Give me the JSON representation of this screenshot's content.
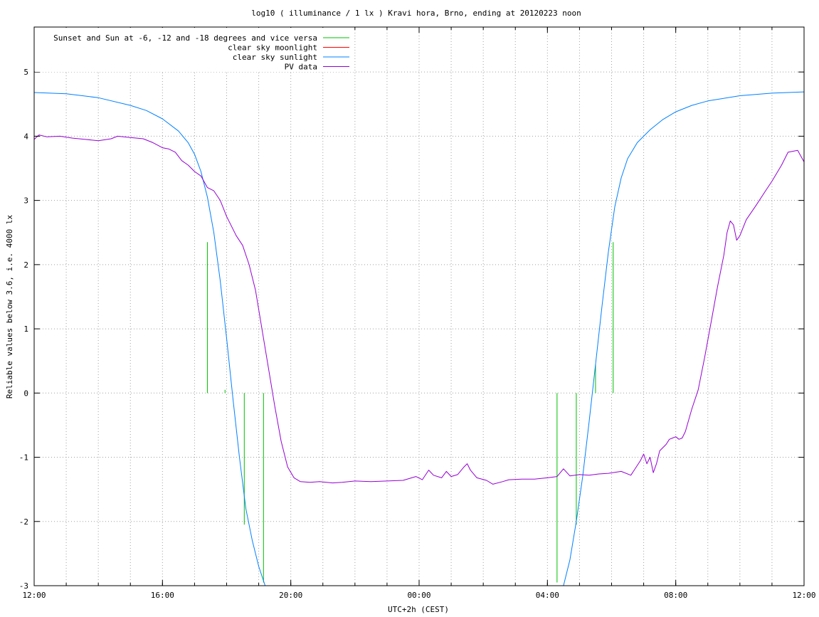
{
  "chart_data": {
    "type": "line",
    "title": "log10 ( illuminance / 1 lx ) Kravi hora, Brno, ending at 20120223 noon",
    "xlabel": "UTC+2h (CEST)",
    "ylabel": "Reliable values below 3.6, i.e. 4000 lx",
    "xlim": [
      0,
      24
    ],
    "ylim": [
      -3,
      5.7
    ],
    "x_tick_positions_hours": [
      0,
      4,
      8,
      12,
      16,
      20,
      24
    ],
    "x_tick_labels": [
      "12:00",
      "16:00",
      "20:00",
      "00:00",
      "04:00",
      "08:00",
      "12:00"
    ],
    "x_minor_grid_hours": [
      0,
      1,
      2,
      3,
      4,
      5,
      6,
      7,
      8,
      9,
      10,
      11,
      12,
      13,
      14,
      15,
      16,
      17,
      18,
      19,
      20,
      21,
      22,
      23,
      24
    ],
    "y_ticks": [
      -3,
      -2,
      -1,
      0,
      1,
      2,
      3,
      4,
      5
    ],
    "grid": true,
    "legend_position": "top-left",
    "series": [
      {
        "name": "Sunset and Sun at -6, -12 and -18 degrees and vice versa",
        "color": "#00c000",
        "kind": "impulses",
        "points": [
          [
            5.4,
            2.35
          ],
          [
            5.95,
            0.05
          ],
          [
            6.55,
            -2.05
          ],
          [
            7.15,
            -2.95
          ],
          [
            16.3,
            -2.95
          ],
          [
            16.9,
            -2.05
          ],
          [
            17.5,
            0.45
          ],
          [
            18.05,
            2.35
          ]
        ]
      },
      {
        "name": "clear sky moonlight",
        "color": "#ff0000",
        "kind": "line",
        "points": []
      },
      {
        "name": "clear sky sunlight",
        "color": "#0080ff",
        "kind": "line",
        "points": [
          [
            0,
            4.68
          ],
          [
            1,
            4.66
          ],
          [
            2,
            4.6
          ],
          [
            3,
            4.48
          ],
          [
            3.5,
            4.4
          ],
          [
            4,
            4.27
          ],
          [
            4.5,
            4.08
          ],
          [
            4.8,
            3.9
          ],
          [
            5.0,
            3.72
          ],
          [
            5.2,
            3.45
          ],
          [
            5.4,
            3.05
          ],
          [
            5.6,
            2.5
          ],
          [
            5.8,
            1.75
          ],
          [
            6.0,
            0.85
          ],
          [
            6.2,
            -0.1
          ],
          [
            6.4,
            -1.0
          ],
          [
            6.6,
            -1.8
          ],
          [
            6.8,
            -2.3
          ],
          [
            7.0,
            -2.7
          ],
          [
            7.2,
            -3.0
          ],
          [
            16.5,
            -3.0
          ],
          [
            16.7,
            -2.6
          ],
          [
            16.9,
            -2.0
          ],
          [
            17.1,
            -1.3
          ],
          [
            17.3,
            -0.45
          ],
          [
            17.5,
            0.45
          ],
          [
            17.7,
            1.35
          ],
          [
            17.9,
            2.2
          ],
          [
            18.1,
            2.9
          ],
          [
            18.3,
            3.35
          ],
          [
            18.5,
            3.65
          ],
          [
            18.8,
            3.9
          ],
          [
            19.2,
            4.1
          ],
          [
            19.6,
            4.26
          ],
          [
            20.0,
            4.38
          ],
          [
            20.5,
            4.48
          ],
          [
            21.0,
            4.55
          ],
          [
            22.0,
            4.63
          ],
          [
            23.0,
            4.67
          ],
          [
            24,
            4.69
          ]
        ]
      },
      {
        "name": "PV data",
        "color": "#9500d3",
        "kind": "line",
        "points": [
          [
            0,
            3.95
          ],
          [
            0.15,
            4.02
          ],
          [
            0.4,
            3.99
          ],
          [
            0.8,
            4.0
          ],
          [
            1.2,
            3.97
          ],
          [
            1.6,
            3.95
          ],
          [
            2.0,
            3.93
          ],
          [
            2.4,
            3.96
          ],
          [
            2.6,
            4.0
          ],
          [
            3.0,
            3.98
          ],
          [
            3.4,
            3.96
          ],
          [
            3.7,
            3.9
          ],
          [
            4.0,
            3.82
          ],
          [
            4.2,
            3.8
          ],
          [
            4.4,
            3.75
          ],
          [
            4.6,
            3.62
          ],
          [
            4.8,
            3.55
          ],
          [
            5.0,
            3.45
          ],
          [
            5.2,
            3.38
          ],
          [
            5.4,
            3.2
          ],
          [
            5.6,
            3.15
          ],
          [
            5.8,
            3.0
          ],
          [
            6.0,
            2.75
          ],
          [
            6.3,
            2.45
          ],
          [
            6.5,
            2.3
          ],
          [
            6.7,
            2.0
          ],
          [
            6.9,
            1.6
          ],
          [
            7.1,
            1.0
          ],
          [
            7.3,
            0.4
          ],
          [
            7.5,
            -0.2
          ],
          [
            7.7,
            -0.75
          ],
          [
            7.9,
            -1.15
          ],
          [
            8.1,
            -1.32
          ],
          [
            8.3,
            -1.38
          ],
          [
            8.6,
            -1.39
          ],
          [
            8.9,
            -1.38
          ],
          [
            9.3,
            -1.4
          ],
          [
            9.6,
            -1.39
          ],
          [
            10.0,
            -1.37
          ],
          [
            10.5,
            -1.38
          ],
          [
            11.0,
            -1.37
          ],
          [
            11.5,
            -1.36
          ],
          [
            11.9,
            -1.3
          ],
          [
            12.1,
            -1.35
          ],
          [
            12.3,
            -1.2
          ],
          [
            12.45,
            -1.28
          ],
          [
            12.7,
            -1.32
          ],
          [
            12.85,
            -1.22
          ],
          [
            13.0,
            -1.3
          ],
          [
            13.2,
            -1.27
          ],
          [
            13.4,
            -1.15
          ],
          [
            13.5,
            -1.1
          ],
          [
            13.6,
            -1.2
          ],
          [
            13.8,
            -1.32
          ],
          [
            14.1,
            -1.36
          ],
          [
            14.3,
            -1.42
          ],
          [
            14.6,
            -1.38
          ],
          [
            14.8,
            -1.35
          ],
          [
            15.2,
            -1.34
          ],
          [
            15.6,
            -1.34
          ],
          [
            16.0,
            -1.32
          ],
          [
            16.3,
            -1.3
          ],
          [
            16.5,
            -1.18
          ],
          [
            16.7,
            -1.29
          ],
          [
            17.0,
            -1.27
          ],
          [
            17.3,
            -1.28
          ],
          [
            17.6,
            -1.26
          ],
          [
            17.9,
            -1.25
          ],
          [
            18.3,
            -1.22
          ],
          [
            18.6,
            -1.28
          ],
          [
            18.9,
            -1.05
          ],
          [
            19.0,
            -0.95
          ],
          [
            19.1,
            -1.1
          ],
          [
            19.2,
            -1.0
          ],
          [
            19.3,
            -1.24
          ],
          [
            19.4,
            -1.1
          ],
          [
            19.5,
            -0.9
          ],
          [
            19.6,
            -0.85
          ],
          [
            19.7,
            -0.8
          ],
          [
            19.8,
            -0.72
          ],
          [
            19.9,
            -0.7
          ],
          [
            20.0,
            -0.68
          ],
          [
            20.1,
            -0.72
          ],
          [
            20.2,
            -0.7
          ],
          [
            20.3,
            -0.6
          ],
          [
            20.5,
            -0.25
          ],
          [
            20.7,
            0.05
          ],
          [
            20.9,
            0.55
          ],
          [
            21.1,
            1.1
          ],
          [
            21.3,
            1.65
          ],
          [
            21.5,
            2.15
          ],
          [
            21.6,
            2.5
          ],
          [
            21.7,
            2.68
          ],
          [
            21.8,
            2.62
          ],
          [
            21.9,
            2.38
          ],
          [
            22.0,
            2.45
          ],
          [
            22.2,
            2.7
          ],
          [
            22.5,
            2.92
          ],
          [
            22.8,
            3.15
          ],
          [
            23.0,
            3.3
          ],
          [
            23.3,
            3.55
          ],
          [
            23.5,
            3.75
          ],
          [
            23.8,
            3.78
          ],
          [
            24.0,
            3.6
          ]
        ]
      }
    ]
  }
}
